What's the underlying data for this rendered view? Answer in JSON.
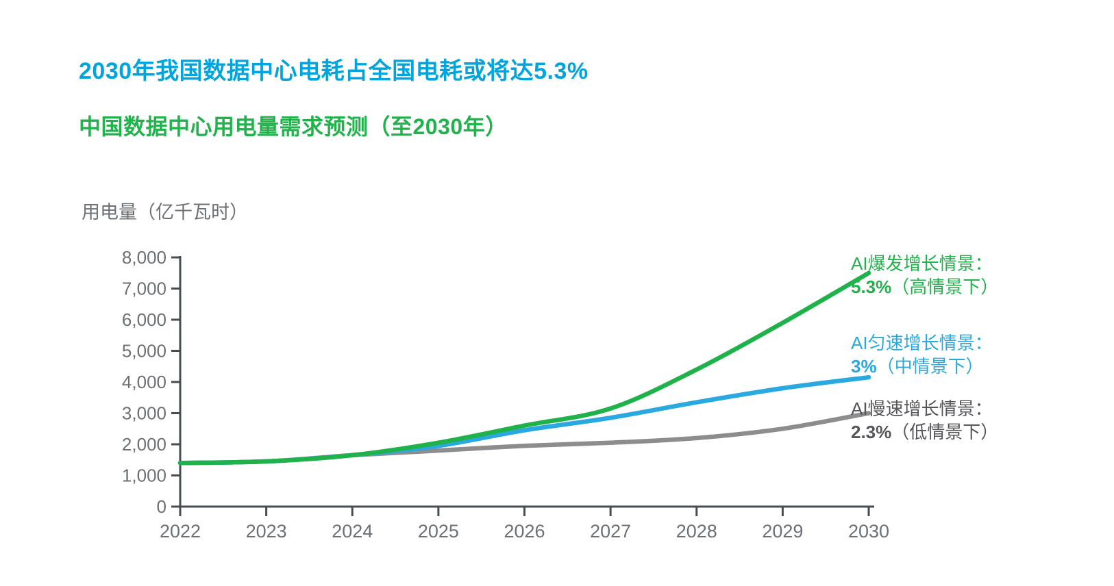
{
  "title": {
    "text": "2030年我国数据中心电耗占全国电耗或将达5.3%",
    "color": "#00A5DF"
  },
  "subtitle": {
    "text": "中国数据中心用电量需求预测（至2030年）",
    "color": "#22B24C"
  },
  "y_axis_unit": "用电量（亿千瓦时）",
  "colors": {
    "axis": "#474C51",
    "tick_label": "#6D7175",
    "series_high": "#1FB24B",
    "series_mid": "#2AA9E0",
    "series_low": "#8D8D8D",
    "ann_high_text": "#22B24C",
    "ann_mid_text": "#2AA9E0",
    "ann_low_text": "#54565A"
  },
  "chart_data": {
    "type": "line",
    "x": [
      2022,
      2023,
      2024,
      2025,
      2026,
      2027,
      2028,
      2029,
      2030
    ],
    "x_tick_labels": [
      "2022",
      "2023",
      "2024",
      "2025",
      "2026",
      "2027",
      "2028",
      "2029",
      "2030"
    ],
    "y_tick_labels": [
      "0",
      "1,000",
      "2,000",
      "3,000",
      "4,000",
      "5,000",
      "6,000",
      "7,000",
      "8,000"
    ],
    "ylim": [
      0,
      8000
    ],
    "ytick_step": 1000,
    "grid": false,
    "legend_position": "right-of-line-ends",
    "ylabel": "用电量（亿千瓦时）",
    "xlabel": "",
    "series": [
      {
        "name": "AI爆发增长情景（高情景，5.3%）",
        "key": "high",
        "values": [
          1400,
          1450,
          1650,
          2050,
          2600,
          3150,
          4400,
          5900,
          7500
        ]
      },
      {
        "name": "AI匀速增长情景（中情景，3%）",
        "key": "mid",
        "values": [
          1400,
          1450,
          1650,
          1950,
          2450,
          2850,
          3350,
          3800,
          4150
        ]
      },
      {
        "name": "AI慢速增长情景（低情景，2.3%）",
        "key": "low",
        "values": [
          1400,
          1450,
          1650,
          1800,
          1950,
          2050,
          2200,
          2500,
          3000
        ]
      }
    ]
  },
  "annotations": [
    {
      "key": "high",
      "line1": "AI爆发增长情景：",
      "pct": "5.3%",
      "suffix": "（高情景下）"
    },
    {
      "key": "mid",
      "line1": "AI匀速增长情景：",
      "pct": "3%",
      "suffix": "（中情景下）"
    },
    {
      "key": "low",
      "line1": "AI慢速增长情景：",
      "pct": "2.3%",
      "suffix": "（低情景下）"
    }
  ]
}
